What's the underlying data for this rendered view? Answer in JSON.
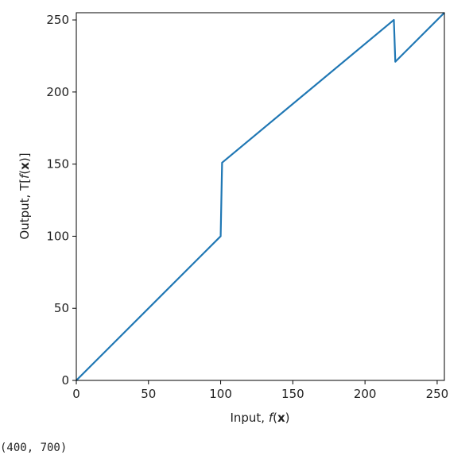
{
  "chart_data": {
    "type": "line",
    "title": "",
    "xlabel": {
      "prefix": "Input, ",
      "func": "f",
      "open": "(",
      "var": "x",
      "close": ")"
    },
    "ylabel": {
      "prefix": "Output, T[",
      "func": "f",
      "open": "(",
      "var": "x",
      "close": ")]"
    },
    "xlim": [
      0,
      255
    ],
    "ylim": [
      0,
      255
    ],
    "xticks": [
      0,
      50,
      100,
      150,
      200,
      250
    ],
    "yticks": [
      0,
      50,
      100,
      150,
      200,
      250
    ],
    "grid": false,
    "legend": "none",
    "series": [
      {
        "color": "#1f77b4",
        "x": [
          0,
          100,
          101,
          220,
          221,
          255
        ],
        "y": [
          0,
          100,
          151,
          250,
          221,
          255
        ]
      }
    ]
  },
  "output": {
    "text": "(400, 700)"
  }
}
